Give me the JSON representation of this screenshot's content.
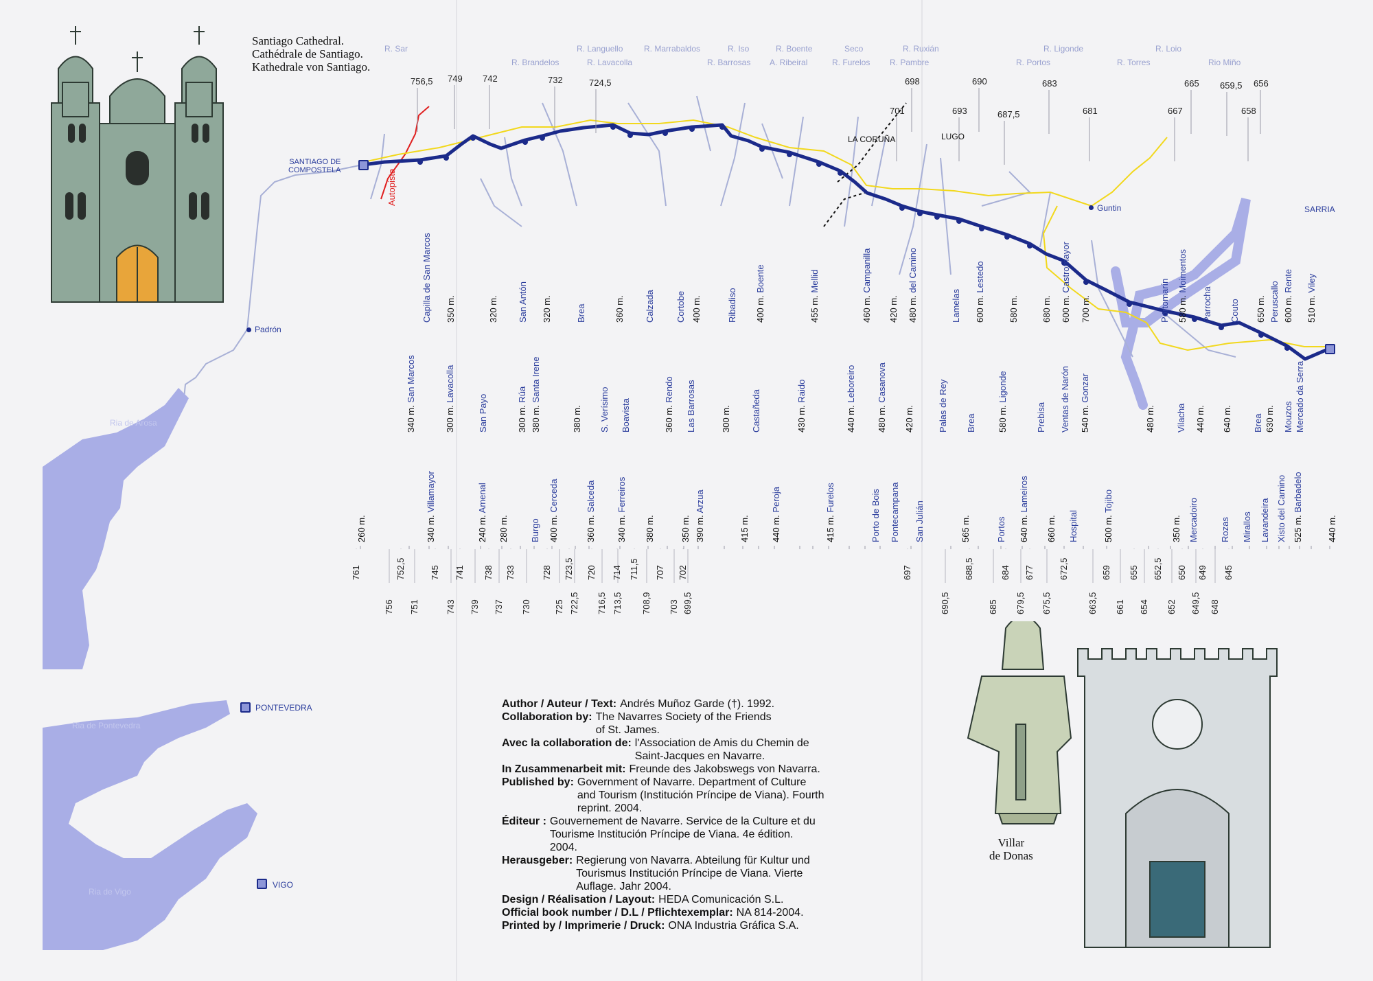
{
  "cathedral_caption": [
    "Santiago Cathedral.",
    "Cathédrale de Santiago.",
    "Kathedrale von Santiago."
  ],
  "villar_caption": [
    "Villar",
    "de Donas"
  ],
  "colors": {
    "route": "#1b2a8a",
    "road": "#f2d81c",
    "autopista": "#e02020",
    "water": "#a9aee6",
    "river": "#a8b0d6",
    "place": "#2a3c9c"
  },
  "left_map": {
    "padron": "Padrón",
    "ria_arosa": "Ria de Arosa",
    "pontevedra": "PONTEVEDRA",
    "ria_pontevedra": "Ria de Pontevedra",
    "vigo": "VIGO",
    "ria_vigo": "Ria de Vigo"
  },
  "route": {
    "start": "SANTIAGO DE COMPOSTELA",
    "start_lines": [
      "SANTIAGO DE",
      "COMPOSTELA"
    ],
    "end": "SARRIA",
    "autopista": "Autopista",
    "guntin": "Guntin",
    "la_coruna": "LA CORUÑA",
    "lugo": "LUGO",
    "rivers": [
      "R. Sar",
      "R. Lavacolla",
      "R. Brandelos",
      "R. Languello",
      "R. Marrabaldos",
      "R. Barrosas",
      "R. Iso",
      "A. Ribeiral",
      "R. Boente",
      "R. Furelos",
      "Seco",
      "R. Pambre",
      "R. Ruxián",
      "R. Portos",
      "R. Ligonde",
      "R. Torres",
      "R. Loio",
      "Rio Miño"
    ],
    "top_altitudes": [
      "756,5",
      "749",
      "742",
      "732",
      "724,5",
      "698",
      "701",
      "693",
      "690",
      "687,5",
      "683",
      "681",
      "667",
      "665",
      "659,5",
      "656",
      "658"
    ],
    "places": [
      {
        "alt": "260 m.",
        "name": ""
      },
      {
        "alt": "340 m.",
        "name": "San Marcos"
      },
      {
        "alt": "340 m.",
        "name": "Villamayor"
      },
      {
        "alt": "300 m.",
        "name": "Lavacolla"
      },
      {
        "alt": "",
        "name": "Capilla de San Marcos"
      },
      {
        "alt": "350 m.",
        "name": ""
      },
      {
        "alt": "240 m.",
        "name": "Amenal"
      },
      {
        "alt": "",
        "name": "San Payo"
      },
      {
        "alt": "320 m.",
        "name": ""
      },
      {
        "alt": "280 m.",
        "name": ""
      },
      {
        "alt": "300 m.",
        "name": "Rúa"
      },
      {
        "alt": "",
        "name": "San Antón"
      },
      {
        "alt": "",
        "name": "Burgo"
      },
      {
        "alt": "320 m.",
        "name": ""
      },
      {
        "alt": "380 m.",
        "name": "Santa Irene"
      },
      {
        "alt": "400 m.",
        "name": "Cerceda"
      },
      {
        "alt": "380 m.",
        "name": ""
      },
      {
        "alt": "",
        "name": "Brea"
      },
      {
        "alt": "360 m.",
        "name": "Salceda"
      },
      {
        "alt": "",
        "name": "S. Verísimo"
      },
      {
        "alt": "360 m.",
        "name": ""
      },
      {
        "alt": "",
        "name": "Boavista"
      },
      {
        "alt": "340 m.",
        "name": "Ferreiros"
      },
      {
        "alt": "",
        "name": "Calzada"
      },
      {
        "alt": "380 m.",
        "name": ""
      },
      {
        "alt": "360 m.",
        "name": "Rendo"
      },
      {
        "alt": "",
        "name": "Cortobe"
      },
      {
        "alt": "350 m.",
        "name": ""
      },
      {
        "alt": "",
        "name": "Las Barrosas"
      },
      {
        "alt": "400 m.",
        "name": ""
      },
      {
        "alt": "390 m.",
        "name": "Arzua"
      },
      {
        "alt": "",
        "name": "Ribadiso"
      },
      {
        "alt": "300 m.",
        "name": ""
      },
      {
        "alt": "415 m.",
        "name": ""
      },
      {
        "alt": "",
        "name": "Castañeda"
      },
      {
        "alt": "400 m.",
        "name": "Boente"
      },
      {
        "alt": "440 m.",
        "name": "Peroja"
      },
      {
        "alt": "430 m.",
        "name": "Raido"
      },
      {
        "alt": "455 m.",
        "name": "Mellid"
      },
      {
        "alt": "415 m.",
        "name": "Furelos"
      },
      {
        "alt": "440 m.",
        "name": "Leboreiro"
      },
      {
        "alt": "460 m.",
        "name": "Campanilla"
      },
      {
        "alt": "",
        "name": "Porto de Bois"
      },
      {
        "alt": "480 m.",
        "name": "Casanova"
      },
      {
        "alt": "420 m.",
        "name": ""
      },
      {
        "alt": "",
        "name": "Pontecampana"
      },
      {
        "alt": "420 m.",
        "name": ""
      },
      {
        "alt": "",
        "name": "San Julián"
      },
      {
        "alt": "480 m.",
        "name": "del Camino"
      },
      {
        "alt": "",
        "name": "Palas de Rey"
      },
      {
        "alt": "565 m.",
        "name": ""
      },
      {
        "alt": "",
        "name": "Lamelas"
      },
      {
        "alt": "",
        "name": "Brea"
      },
      {
        "alt": "600 m.",
        "name": "Lestedo"
      },
      {
        "alt": "",
        "name": "Portos"
      },
      {
        "alt": "580 m.",
        "name": ""
      },
      {
        "alt": "580 m.",
        "name": "Ligonde"
      },
      {
        "alt": "640 m.",
        "name": "Lameiros"
      },
      {
        "alt": "",
        "name": "Prebisa"
      },
      {
        "alt": "660 m.",
        "name": ""
      },
      {
        "alt": "",
        "name": "Ventas de Narón"
      },
      {
        "alt": "700 m.",
        "name": ""
      },
      {
        "alt": "",
        "name": "Hospital"
      },
      {
        "alt": "680 m.",
        "name": ""
      },
      {
        "alt": "600 m.",
        "name": "Castromayor"
      },
      {
        "alt": "540 m.",
        "name": "Gonzar"
      },
      {
        "alt": "500 m.",
        "name": "Tojibo"
      },
      {
        "alt": "350 m.",
        "name": ""
      },
      {
        "alt": "",
        "name": "Portomarín"
      },
      {
        "alt": "480 m.",
        "name": ""
      },
      {
        "alt": "",
        "name": "Vilacha"
      },
      {
        "alt": "440 m.",
        "name": ""
      },
      {
        "alt": "",
        "name": "Mercadoiro"
      },
      {
        "alt": "",
        "name": "Parrocha"
      },
      {
        "alt": "580 m.",
        "name": "Moimentos"
      },
      {
        "alt": "",
        "name": "Rozas"
      },
      {
        "alt": "",
        "name": "Couto"
      },
      {
        "alt": "640 m.",
        "name": ""
      },
      {
        "alt": "650 m.",
        "name": ""
      },
      {
        "alt": "",
        "name": "Mirallos"
      },
      {
        "alt": "",
        "name": "Brea"
      },
      {
        "alt": "",
        "name": "Lavandeira"
      },
      {
        "alt": "",
        "name": "Peruscallo"
      },
      {
        "alt": "",
        "name": "Xisto del Camino"
      },
      {
        "alt": "630 m.",
        "name": ""
      },
      {
        "alt": "",
        "name": "Mouzos"
      },
      {
        "alt": "",
        "name": "Mercado da Serra"
      },
      {
        "alt": "600 m.",
        "name": "Rente"
      },
      {
        "alt": "525 m.",
        "name": "Barbadelo"
      },
      {
        "alt": "510 m.",
        "name": "Viley"
      },
      {
        "alt": "440 m.",
        "name": ""
      }
    ],
    "km_marks": [
      "761",
      "756",
      "752,5",
      "751",
      "745",
      "743",
      "741",
      "739",
      "738",
      "737",
      "733",
      "730",
      "728",
      "725",
      "723,5",
      "722,5",
      "720",
      "716,5",
      "714",
      "713,5",
      "711,5",
      "708,9",
      "707",
      "703",
      "702",
      "699,5",
      "697",
      "690,5",
      "688,5",
      "685",
      "684",
      "679,5",
      "677",
      "675,5",
      "672,5",
      "663,5",
      "659",
      "661",
      "655",
      "654",
      "652,5",
      "652",
      "650",
      "649,5",
      "649",
      "648",
      "645"
    ]
  },
  "credits": [
    {
      "label": "Author / Auteur / Text:",
      "lines": [
        "Andrés Muñoz Garde (†). 1992."
      ]
    },
    {
      "label": "Collaboration by:",
      "lines": [
        "The Navarres Society of the Friends",
        "of St. James."
      ]
    },
    {
      "label": "Avec la collaboration de:",
      "lines": [
        "l'Association de Amis du Chemin de",
        "Saint-Jacques en Navarre."
      ]
    },
    {
      "label": "In Zusammenarbeit mit:",
      "lines": [
        "Freunde des Jakobswegs von Navarra."
      ]
    },
    {
      "label": "Published by:",
      "lines": [
        "Government of Navarre. Department of Culture",
        "and Tourism (Institución Príncipe de Viana). Fourth",
        "reprint. 2004."
      ]
    },
    {
      "label": "Éditeur :",
      "lines": [
        "Gouvernement de Navarre. Service de la Culture et du",
        "Tourisme Institución Príncipe de Viana. 4e édition.",
        "2004."
      ]
    },
    {
      "label": "Herausgeber:",
      "lines": [
        "Regierung von Navarra. Abteilung für Kultur und",
        "Tourismus Institución Príncipe de Viana. Vierte",
        "Auflage. Jahr 2004."
      ]
    },
    {
      "label": "Design / Réalisation / Layout:",
      "lines": [
        "HEDA Comunicación S.L."
      ]
    },
    {
      "label": "Official book number / D.L / Pflichtexemplar:",
      "lines": [
        "NA 814-2004."
      ]
    },
    {
      "label": "Printed by / Imprimerie / Druck:",
      "lines": [
        "ONA Industria Gráfica S.A."
      ]
    }
  ]
}
